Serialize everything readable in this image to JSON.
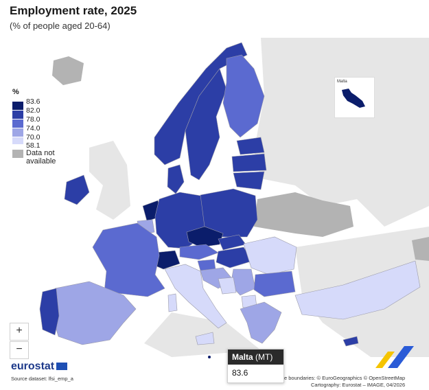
{
  "title": "Employment rate, 2025",
  "subtitle": "(% of people aged 20-64)",
  "legend": {
    "unit": "%",
    "ticks": [
      "83.6",
      "82.0",
      "78.0",
      "74.0",
      "70.0",
      "58.1"
    ],
    "classes": [
      {
        "range": "82.0 – 83.6",
        "color": "#0b1d6b"
      },
      {
        "range": "78.0 – 82.0",
        "color": "#2c3ea6"
      },
      {
        "range": "74.0 – 78.0",
        "color": "#5b6ad0"
      },
      {
        "range": "70.0 – 74.0",
        "color": "#9ea6e6"
      },
      {
        "range": "58.1 – 70.0",
        "color": "#d6dafa"
      }
    ],
    "na_label": "Data not available",
    "na_color": "#b3b3b3"
  },
  "colors": {
    "background": "#ffffff",
    "sea": "#ffffff",
    "non_eu": "#e6e6e6",
    "country_border": "#9a9aa8"
  },
  "zoom": {
    "in_label": "+",
    "out_label": "−"
  },
  "inset": {
    "label": "Malta"
  },
  "tooltip": {
    "country": "Malta",
    "code": "(MT)",
    "value": "83.6"
  },
  "footer": {
    "brand": "eurostat",
    "source": "Source dataset: lfsi_emp_a",
    "credits_line1": "e boundaries: © EuroGeographics © OpenStreetMap",
    "credits_line2": "Cartography: Eurostat – IMAGE, 04/2026"
  },
  "icons": {
    "zoom_in": "plus-icon",
    "zoom_out": "minus-icon",
    "flag": "eu-flag-icon",
    "stripes": "brand-stripes-icon"
  }
}
